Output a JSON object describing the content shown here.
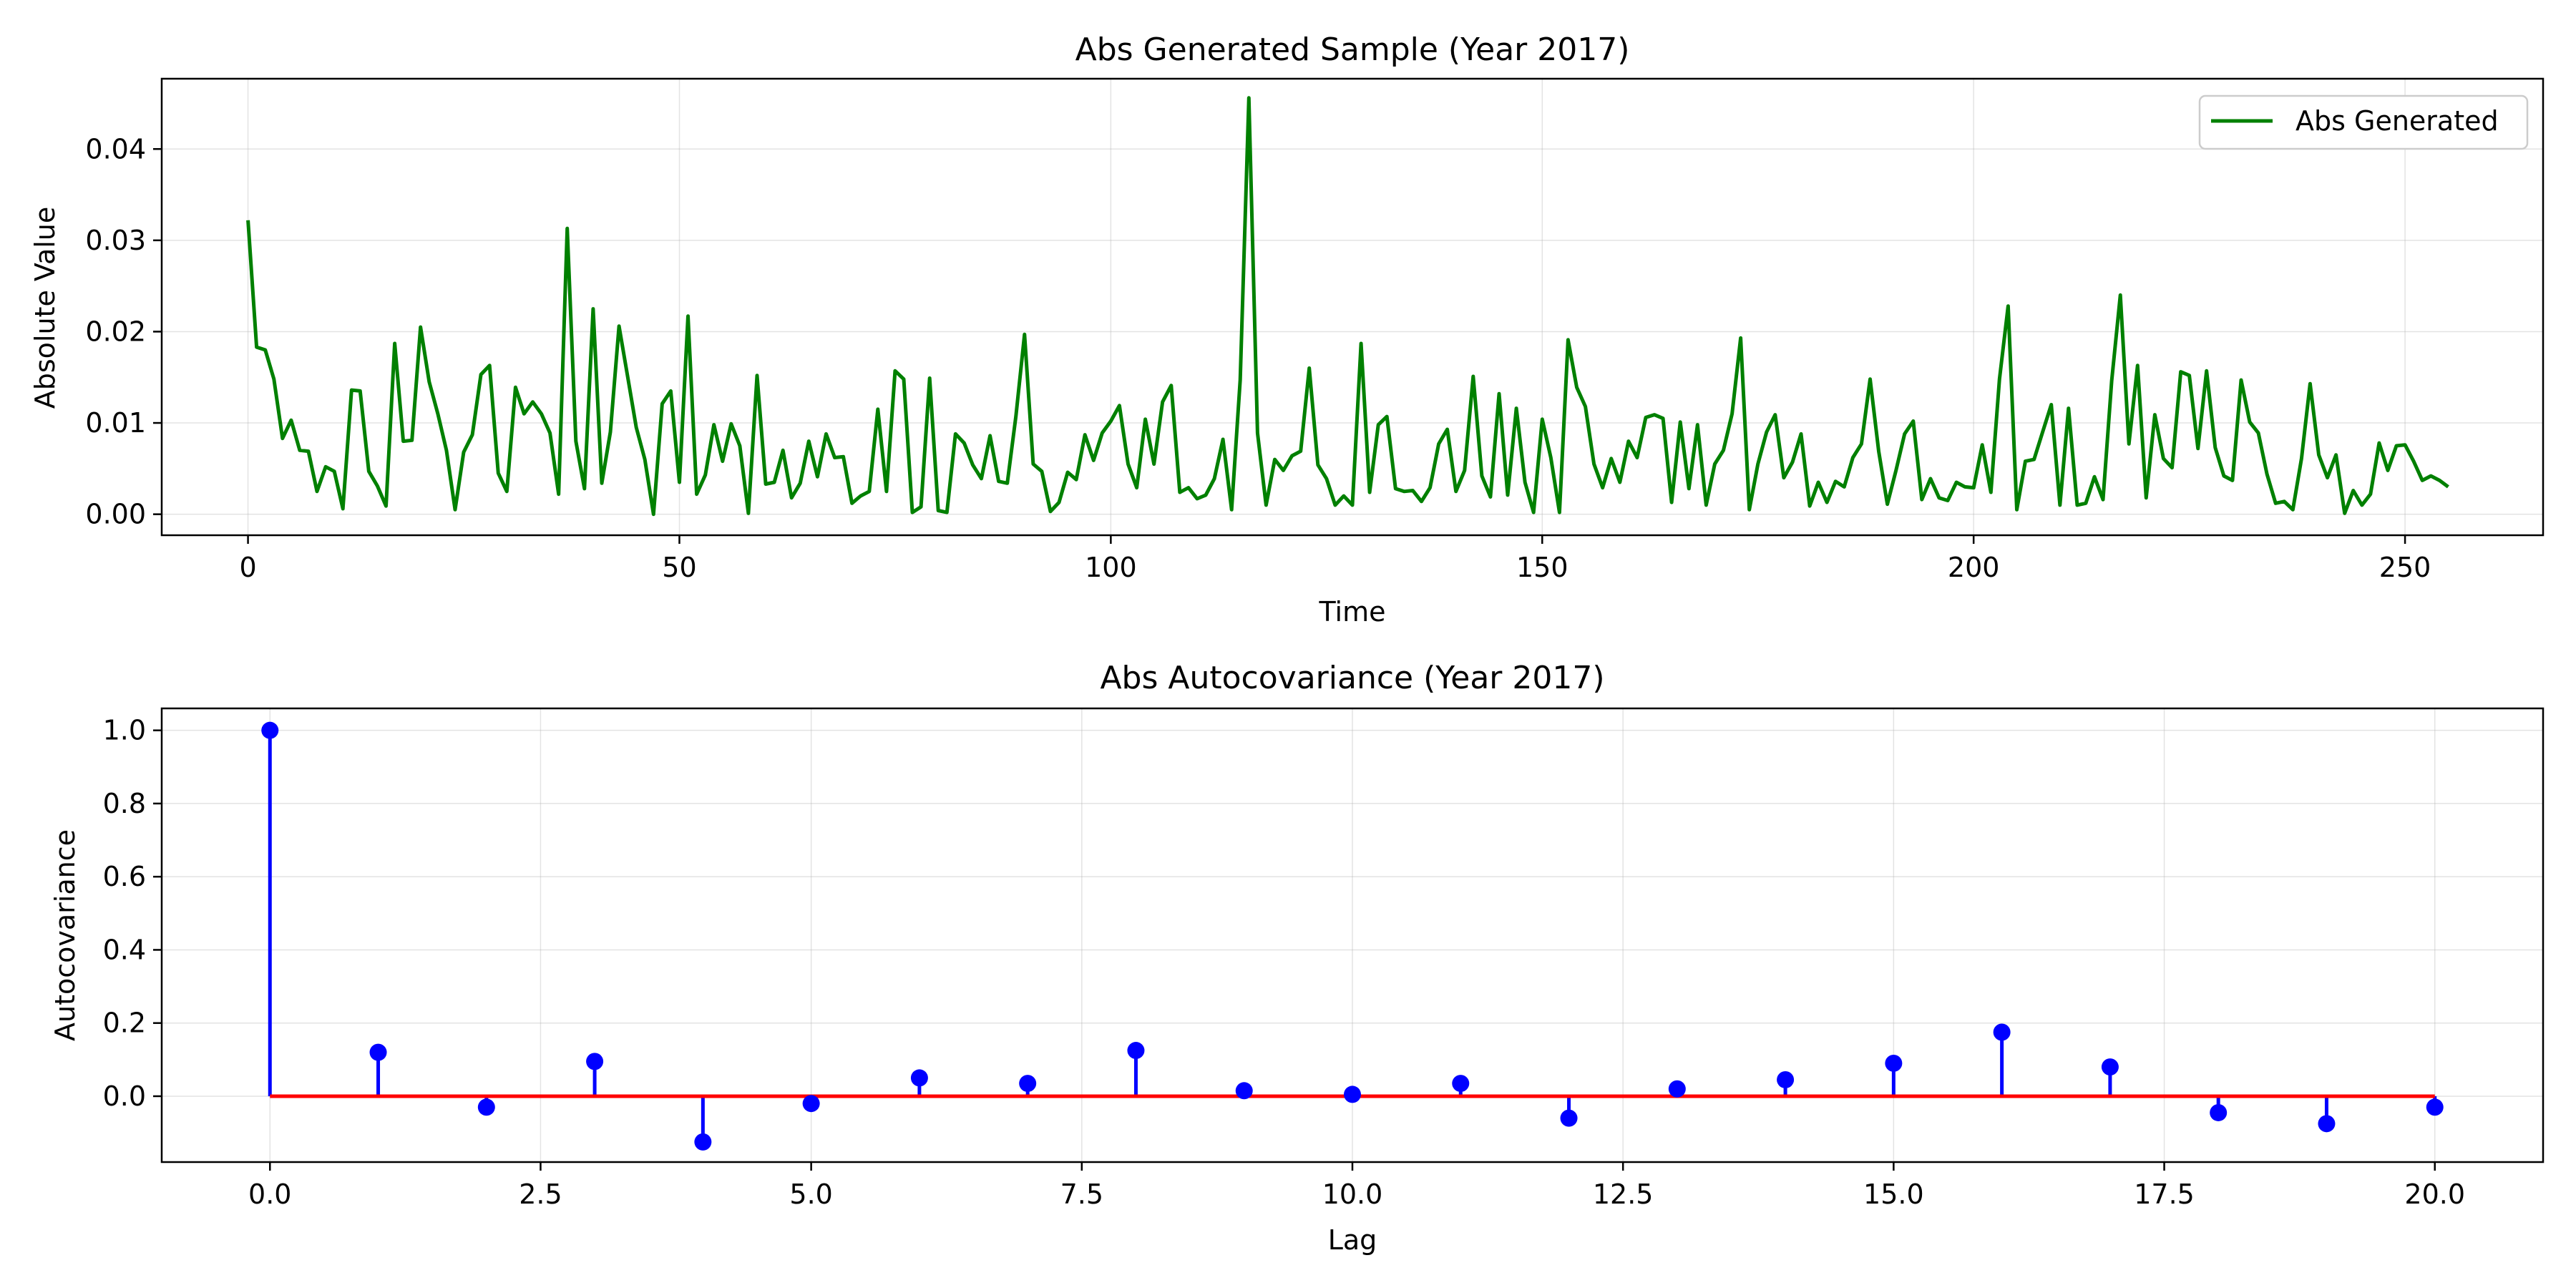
{
  "chart_data": [
    {
      "type": "line",
      "title": "Abs Generated Sample (Year 2017)",
      "xlabel": "Time",
      "ylabel": "Absolute Value",
      "xlim": [
        -10,
        266
      ],
      "ylim": [
        -0.0023,
        0.0477
      ],
      "xticks": [
        0,
        50,
        100,
        150,
        200,
        250
      ],
      "yticks": [
        0.0,
        0.01,
        0.02,
        0.03,
        0.04
      ],
      "ytick_labels": [
        "0.00",
        "0.01",
        "0.02",
        "0.03",
        "0.04"
      ],
      "grid": true,
      "legend": {
        "position": "top-right",
        "entries": [
          "Abs Generated"
        ]
      },
      "series": [
        {
          "name": "Abs Generated",
          "color": "#008000",
          "values": [
            0.0322,
            0.0183,
            0.018,
            0.0148,
            0.0083,
            0.0103,
            0.007,
            0.0069,
            0.0025,
            0.0052,
            0.0047,
            0.0006,
            0.0136,
            0.0135,
            0.0047,
            0.0031,
            0.0009,
            0.0187,
            0.008,
            0.0081,
            0.0205,
            0.0145,
            0.011,
            0.007,
            0.0005,
            0.0068,
            0.0087,
            0.0153,
            0.0163,
            0.0045,
            0.0025,
            0.0139,
            0.011,
            0.0123,
            0.011,
            0.0089,
            0.0022,
            0.0313,
            0.008,
            0.0028,
            0.0225,
            0.0034,
            0.009,
            0.0206,
            0.0151,
            0.0095,
            0.006,
            0.0,
            0.0121,
            0.0135,
            0.0035,
            0.0217,
            0.0022,
            0.0043,
            0.0098,
            0.0058,
            0.0099,
            0.0075,
            0.0001,
            0.0152,
            0.0033,
            0.0035,
            0.007,
            0.0018,
            0.0034,
            0.008,
            0.0041,
            0.0088,
            0.0062,
            0.0063,
            0.0012,
            0.002,
            0.0025,
            0.0115,
            0.0025,
            0.0157,
            0.0148,
            0.0002,
            0.0008,
            0.0149,
            0.0004,
            0.0002,
            0.0088,
            0.0078,
            0.0054,
            0.0039,
            0.0086,
            0.0036,
            0.0034,
            0.0107,
            0.0197,
            0.0055,
            0.0047,
            0.0003,
            0.0013,
            0.0046,
            0.0038,
            0.0087,
            0.0059,
            0.0089,
            0.0102,
            0.0119,
            0.0055,
            0.0029,
            0.0104,
            0.0055,
            0.0123,
            0.0141,
            0.0024,
            0.0029,
            0.0017,
            0.0021,
            0.0039,
            0.0082,
            0.0005,
            0.0147,
            0.0456,
            0.0089,
            0.001,
            0.006,
            0.0048,
            0.0064,
            0.0069,
            0.016,
            0.0054,
            0.0039,
            0.001,
            0.002,
            0.001,
            0.0187,
            0.0024,
            0.0098,
            0.0107,
            0.0028,
            0.0025,
            0.0026,
            0.0014,
            0.0029,
            0.0077,
            0.0093,
            0.0025,
            0.0048,
            0.0151,
            0.0042,
            0.0019,
            0.0132,
            0.0021,
            0.0116,
            0.0035,
            0.0002,
            0.0104,
            0.0062,
            0.0002,
            0.0191,
            0.0139,
            0.0118,
            0.0055,
            0.0029,
            0.0061,
            0.0035,
            0.008,
            0.0062,
            0.0106,
            0.0109,
            0.0105,
            0.0013,
            0.0101,
            0.0028,
            0.0098,
            0.001,
            0.0055,
            0.007,
            0.011,
            0.0193,
            0.0005,
            0.0055,
            0.009,
            0.0109,
            0.004,
            0.0057,
            0.0088,
            0.0009,
            0.0035,
            0.0013,
            0.0036,
            0.003,
            0.0062,
            0.0077,
            0.0148,
            0.0069,
            0.0011,
            0.0048,
            0.0088,
            0.0102,
            0.0016,
            0.0039,
            0.0018,
            0.0015,
            0.0035,
            0.003,
            0.0029,
            0.0076,
            0.0024,
            0.0148,
            0.0228,
            0.0005,
            0.0058,
            0.006,
            0.009,
            0.012,
            0.001,
            0.0116,
            0.001,
            0.0012,
            0.0041,
            0.0016,
            0.0146,
            0.024,
            0.0077,
            0.0163,
            0.0018,
            0.0109,
            0.0061,
            0.0051,
            0.0156,
            0.0152,
            0.0072,
            0.0157,
            0.0073,
            0.0042,
            0.0037,
            0.0147,
            0.0101,
            0.0089,
            0.0044,
            0.0012,
            0.0014,
            0.0005,
            0.0061,
            0.0143,
            0.0065,
            0.004,
            0.0065,
            0.0001,
            0.0026,
            0.001,
            0.0022,
            0.0078,
            0.0048,
            0.0075,
            0.0076,
            0.0058,
            0.0037,
            0.0042,
            0.0037,
            0.003
          ]
        }
      ]
    },
    {
      "type": "stem",
      "title": "Abs Autocovariance (Year 2017)",
      "xlabel": "Lag",
      "ylabel": "Autocovariance",
      "xlim": [
        -1.0,
        21.0
      ],
      "ylim": [
        -0.18,
        1.06
      ],
      "xticks": [
        0.0,
        2.5,
        5.0,
        7.5,
        10.0,
        12.5,
        15.0,
        17.5,
        20.0
      ],
      "xtick_labels": [
        "0.0",
        "2.5",
        "5.0",
        "7.5",
        "10.0",
        "12.5",
        "15.0",
        "17.5",
        "20.0"
      ],
      "yticks": [
        0.0,
        0.2,
        0.4,
        0.6,
        0.8,
        1.0
      ],
      "ytick_labels": [
        "0.0",
        "0.2",
        "0.4",
        "0.6",
        "0.8",
        "1.0"
      ],
      "grid": true,
      "stem_color": "#0000ff",
      "baseline_color": "#ff0000",
      "x": [
        0,
        1,
        2,
        3,
        4,
        5,
        6,
        7,
        8,
        9,
        10,
        11,
        12,
        13,
        14,
        15,
        16,
        17,
        18,
        19,
        20
      ],
      "values": [
        1.0,
        0.12,
        -0.03,
        0.095,
        -0.125,
        -0.02,
        0.05,
        0.035,
        0.125,
        0.015,
        0.005,
        0.035,
        -0.06,
        0.02,
        0.045,
        0.09,
        0.175,
        0.08,
        -0.045,
        -0.075,
        -0.03
      ]
    }
  ]
}
